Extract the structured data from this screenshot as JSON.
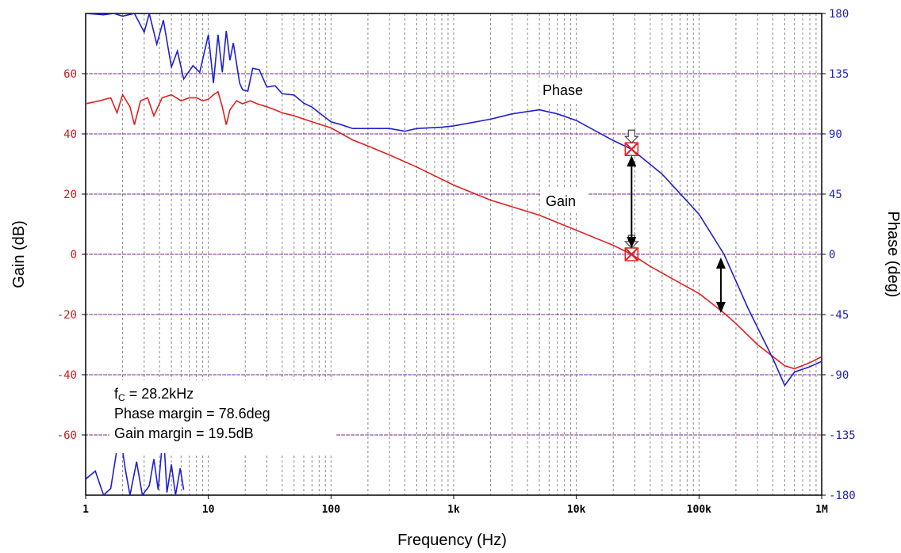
{
  "chart_data": {
    "type": "line",
    "title": "",
    "xlabel": "Frequency (Hz)",
    "ylabel_left": "Gain (dB)",
    "ylabel_right": "Phase (deg)",
    "x_scale": "log",
    "xlim": [
      1,
      1000000
    ],
    "ylim_left": [
      -80,
      80
    ],
    "ylim_right": [
      -180,
      180
    ],
    "x_tick_values": [
      1,
      10,
      100,
      1000,
      10000,
      100000,
      1000000
    ],
    "x_tick_labels": [
      "1",
      "10",
      "100",
      "1k",
      "10k",
      "100k",
      "1M"
    ],
    "left_tick_values": [
      60,
      40,
      20,
      0,
      -20,
      -40,
      -60
    ],
    "left_tick_labels": [
      "60",
      "40",
      "20",
      "0",
      "-20",
      "-40",
      "-60"
    ],
    "right_tick_values": [
      180,
      135,
      90,
      45,
      0,
      -45,
      -90,
      -135,
      -180
    ],
    "right_tick_labels": [
      "180",
      "135",
      "90",
      "45",
      "0",
      "-45",
      "-90",
      "-135",
      "-180"
    ],
    "grid": true,
    "colors": {
      "gain": "#e02020",
      "phase": "#1f1fd0",
      "left_axis_text": "#c81e1e",
      "right_axis_text": "#1f1fb8"
    },
    "series": [
      {
        "key": "gain",
        "axis": "left",
        "points": [
          [
            1,
            50
          ],
          [
            1.3,
            51
          ],
          [
            1.6,
            52
          ],
          [
            1.8,
            47
          ],
          [
            2.0,
            53
          ],
          [
            2.3,
            49
          ],
          [
            2.5,
            43
          ],
          [
            2.8,
            51
          ],
          [
            3.2,
            52
          ],
          [
            3.6,
            46
          ],
          [
            4.2,
            52
          ],
          [
            5,
            53
          ],
          [
            6,
            51
          ],
          [
            7,
            52
          ],
          [
            8,
            52
          ],
          [
            9,
            51
          ],
          [
            10,
            51.5
          ],
          [
            11,
            53
          ],
          [
            12,
            54
          ],
          [
            13,
            49
          ],
          [
            14,
            43
          ],
          [
            15,
            48
          ],
          [
            17,
            51
          ],
          [
            19,
            50
          ],
          [
            22,
            51
          ],
          [
            25,
            50
          ],
          [
            30,
            49
          ],
          [
            35,
            48
          ],
          [
            40,
            47
          ],
          [
            50,
            46
          ],
          [
            70,
            44
          ],
          [
            100,
            42
          ],
          [
            150,
            38
          ],
          [
            200,
            36
          ],
          [
            300,
            33
          ],
          [
            500,
            29
          ],
          [
            1000,
            23
          ],
          [
            2000,
            18
          ],
          [
            5000,
            13
          ],
          [
            10000,
            8
          ],
          [
            20000,
            3
          ],
          [
            28200,
            0
          ],
          [
            40000,
            -4
          ],
          [
            60000,
            -8
          ],
          [
            100000,
            -13
          ],
          [
            160000,
            -19.5
          ],
          [
            200000,
            -23
          ],
          [
            300000,
            -30
          ],
          [
            500000,
            -37
          ],
          [
            600000,
            -38
          ],
          [
            800000,
            -36
          ],
          [
            1000000,
            -34
          ]
        ]
      },
      {
        "key": "phase",
        "axis": "right",
        "points": [
          [
            1,
            180
          ],
          [
            1.4,
            179
          ],
          [
            1.7,
            180
          ],
          [
            2.0,
            178
          ],
          [
            2.5,
            180
          ],
          [
            3.0,
            166
          ],
          [
            3.3,
            180
          ],
          [
            3.8,
            157
          ],
          [
            4.3,
            175
          ],
          [
            5,
            140
          ],
          [
            5.6,
            152
          ],
          [
            6.3,
            131
          ],
          [
            7.5,
            141
          ],
          [
            8.5,
            136
          ],
          [
            10,
            164
          ],
          [
            11,
            128
          ],
          [
            12,
            164
          ],
          [
            13,
            136
          ],
          [
            14,
            167
          ],
          [
            15,
            145
          ],
          [
            16,
            158
          ],
          [
            18,
            128
          ],
          [
            19,
            123
          ],
          [
            21,
            122
          ],
          [
            23,
            139
          ],
          [
            26,
            138
          ],
          [
            30,
            125
          ],
          [
            35,
            126
          ],
          [
            40,
            120
          ],
          [
            50,
            119
          ],
          [
            60,
            113
          ],
          [
            70,
            110
          ],
          [
            85,
            104
          ],
          [
            100,
            99
          ],
          [
            120,
            97
          ],
          [
            150,
            94
          ],
          [
            200,
            94
          ],
          [
            300,
            94
          ],
          [
            400,
            92
          ],
          [
            500,
            94
          ],
          [
            800,
            95
          ],
          [
            1000,
            96
          ],
          [
            2000,
            101
          ],
          [
            3000,
            105
          ],
          [
            5000,
            108
          ],
          [
            7000,
            105
          ],
          [
            10000,
            100
          ],
          [
            20000,
            85
          ],
          [
            28200,
            78.6
          ],
          [
            50000,
            60
          ],
          [
            100000,
            30
          ],
          [
            160000,
            0
          ],
          [
            250000,
            -40
          ],
          [
            400000,
            -78
          ],
          [
            500000,
            -98
          ],
          [
            600000,
            -88
          ],
          [
            800000,
            -84
          ],
          [
            1000000,
            -80
          ]
        ]
      },
      {
        "key": "phase-noise",
        "axis": "right",
        "points": [
          [
            1,
            -168
          ],
          [
            1.2,
            -162
          ],
          [
            1.4,
            -180
          ],
          [
            1.6,
            -175
          ],
          [
            1.9,
            -132
          ],
          [
            2.1,
            -160
          ],
          [
            2.3,
            -180
          ],
          [
            2.6,
            -155
          ],
          [
            2.9,
            -180
          ],
          [
            3.3,
            -173
          ],
          [
            3.6,
            -153
          ],
          [
            3.9,
            -176
          ],
          [
            4.3,
            -132
          ],
          [
            4.6,
            -178
          ],
          [
            5,
            -157
          ],
          [
            5.4,
            -180
          ],
          [
            5.9,
            -160
          ],
          [
            6.3,
            -176
          ]
        ]
      }
    ],
    "labels": {
      "phase": "Phase",
      "gain": "Gain",
      "info_line1_main": "f",
      "info_line1_sub": "C",
      "info_line1_rest": " = 28.2kHz",
      "info_line2": "Phase margin = 78.6deg",
      "info_line3": "Gain margin = 19.5dB"
    },
    "annotations": {
      "crossover_hz": 28200,
      "crossover_gain_db": 0,
      "crossover_phase_deg": 78.6,
      "phase_cross_hz": 160000,
      "gain_at_phase_cross_db": -19.5
    }
  }
}
